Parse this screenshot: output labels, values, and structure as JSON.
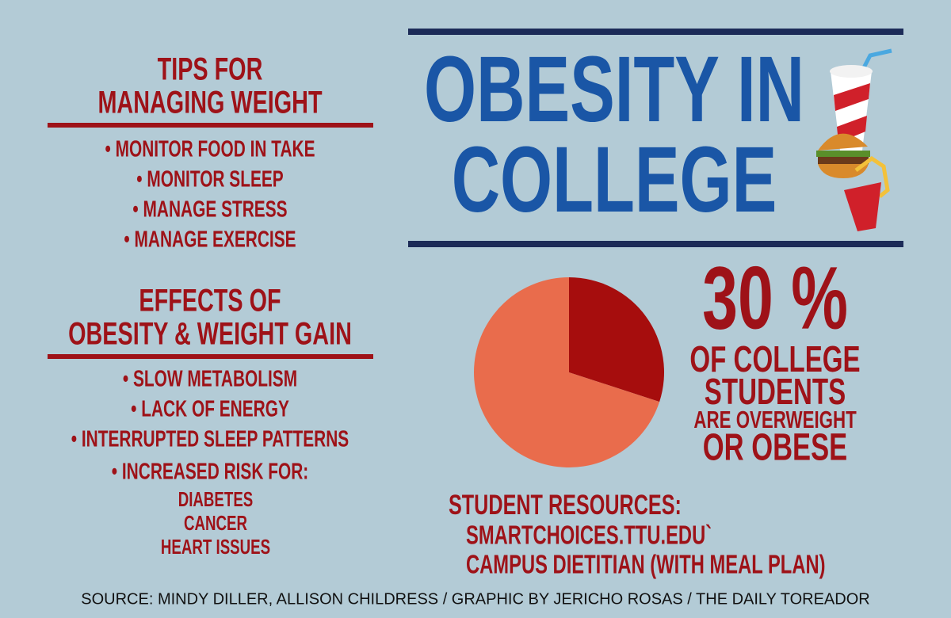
{
  "tips": {
    "heading": [
      "TIPS FOR",
      "MANAGING WEIGHT"
    ],
    "items": [
      "• MONITOR FOOD IN TAKE",
      "• MONITOR SLEEP",
      "• MANAGE STRESS",
      "• MANAGE EXERCISE"
    ]
  },
  "effects": {
    "heading": [
      "EFFECTS OF",
      "OBESITY & WEIGHT GAIN"
    ],
    "items": [
      "• SLOW METABOLISM",
      "• LACK OF ENERGY",
      "• INTERRUPTED  SLEEP PATTERNS",
      "• INCREASED RISK FOR:"
    ],
    "sub_items": [
      "DIABETES",
      "CANCER",
      "HEART ISSUES"
    ]
  },
  "title": [
    "OBESITY IN",
    "COLLEGE"
  ],
  "chart_data": {
    "type": "pie",
    "values": [
      30,
      70
    ],
    "value_labels": [
      "30 %",
      null
    ],
    "colors": [
      "#a60d0d",
      "#e96c4c"
    ]
  },
  "stat_caption": [
    "OF COLLEGE",
    "STUDENTS",
    "ARE OVERWEIGHT",
    "OR OBESE"
  ],
  "resources": {
    "heading": "STUDENT RESOURCES:",
    "items": [
      "SMARTCHOICES.TTU.EDU`",
      "CAMPUS DIETITIAN (WITH MEAL PLAN)"
    ]
  },
  "source": "SOURCE: MINDY DILLER, ALLISON CHILDRESS / GRAPHIC BY JERICHO ROSAS / THE DAILY TOREADOR"
}
